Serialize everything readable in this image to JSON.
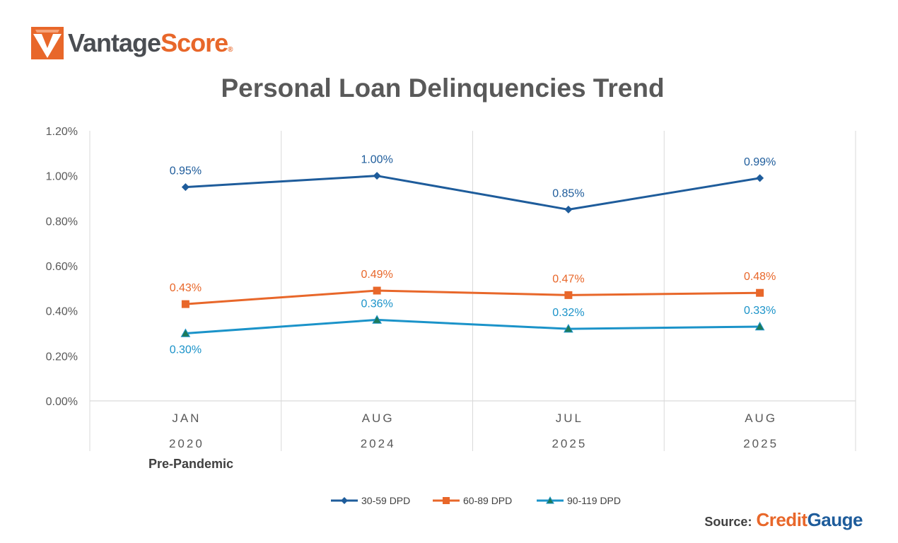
{
  "logo": {
    "text_a": "Vantage",
    "text_b": "Score",
    "reg": "®"
  },
  "source": {
    "label": "Source:",
    "brand_a": "Credit",
    "brand_b": "Gauge"
  },
  "colors": {
    "s1": "#1e5c9b",
    "s2": "#e8672a",
    "s3": "#1b93c9",
    "s3_marker": "#1d7a5a"
  },
  "chart_data": {
    "type": "line",
    "title": "Personal Loan Delinquencies Trend",
    "categories": [
      {
        "line1": "JAN",
        "line2": "2020"
      },
      {
        "line1": "AUG",
        "line2": "2024"
      },
      {
        "line1": "JUL",
        "line2": "2025"
      },
      {
        "line1": "AUG",
        "line2": "2025"
      }
    ],
    "annotation": "Pre-Pandemic",
    "ylim": [
      0,
      1.2
    ],
    "yticks": [
      "0.00%",
      "0.20%",
      "0.40%",
      "0.60%",
      "0.80%",
      "1.00%",
      "1.20%"
    ],
    "ytick_values": [
      0,
      0.2,
      0.4,
      0.6,
      0.8,
      1.0,
      1.2
    ],
    "grid": "vertical",
    "legend_position": "bottom",
    "series": [
      {
        "name": "30-59 DPD",
        "marker": "diamond",
        "values": [
          0.95,
          1.0,
          0.85,
          0.99
        ],
        "labels": [
          "0.95%",
          "1.00%",
          "0.85%",
          "0.99%"
        ]
      },
      {
        "name": "60-89 DPD",
        "marker": "square",
        "values": [
          0.43,
          0.49,
          0.47,
          0.48
        ],
        "labels": [
          "0.43%",
          "0.49%",
          "0.47%",
          "0.48%"
        ]
      },
      {
        "name": "90-119 DPD",
        "marker": "triangle",
        "values": [
          0.3,
          0.36,
          0.32,
          0.33
        ],
        "labels": [
          "0.30%",
          "0.36%",
          "0.32%",
          "0.33%"
        ]
      }
    ]
  }
}
